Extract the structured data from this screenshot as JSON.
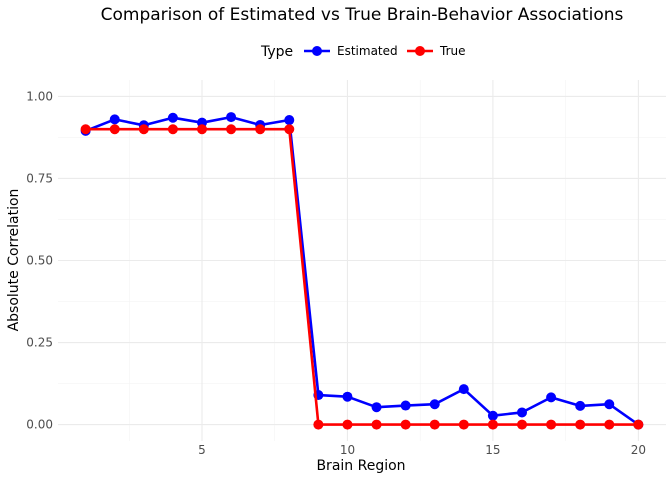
{
  "chart_data": {
    "type": "line",
    "title": "Comparison of Estimated vs True Brain-Behavior Associations",
    "xlabel": "Brain Region",
    "ylabel": "Absolute Correlation",
    "xlim": [
      0.05,
      20.95
    ],
    "ylim": [
      -0.05,
      1.05
    ],
    "x_ticks": [
      5,
      10,
      15,
      20
    ],
    "x_tick_labels": [
      "5",
      "10",
      "15",
      "20"
    ],
    "x_minor_ticks": [
      2.5,
      7.5,
      12.5,
      17.5
    ],
    "y_ticks": [
      0,
      0.25,
      0.5,
      0.75,
      1
    ],
    "y_tick_labels": [
      "0.00",
      "0.25",
      "0.50",
      "0.75",
      "1.00"
    ],
    "y_minor_ticks": [
      0.125,
      0.375,
      0.625,
      0.875
    ],
    "grid": true,
    "legend": {
      "title": "Type",
      "position": "top"
    },
    "x": [
      1,
      2,
      3,
      4,
      5,
      6,
      7,
      8,
      9,
      10,
      11,
      12,
      13,
      14,
      15,
      16,
      17,
      18,
      19,
      20
    ],
    "series": [
      {
        "name": "Estimated",
        "color": "#0000ff",
        "values": [
          0.895,
          0.93,
          0.912,
          0.935,
          0.92,
          0.937,
          0.913,
          0.928,
          0.09,
          0.085,
          0.053,
          0.058,
          0.062,
          0.108,
          0.027,
          0.037,
          0.083,
          0.057,
          0.062,
          0.0
        ]
      },
      {
        "name": "True",
        "color": "#ff0000",
        "values": [
          0.9,
          0.9,
          0.9,
          0.9,
          0.9,
          0.9,
          0.9,
          0.9,
          0,
          0,
          0,
          0,
          0,
          0,
          0,
          0,
          0,
          0,
          0,
          0
        ]
      }
    ]
  }
}
